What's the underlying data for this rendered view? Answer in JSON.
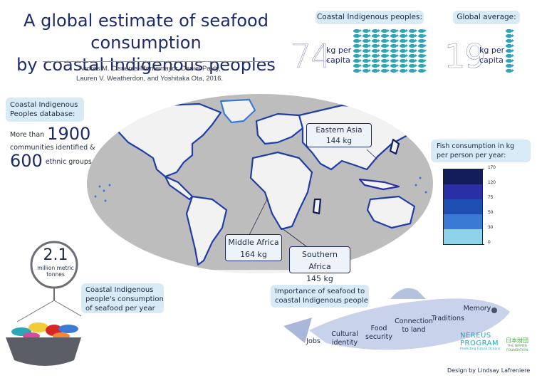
{
  "title_line1": "A global estimate of seafood consumption",
  "title_line2": "by coastal Indigenous peoples",
  "authors_line1": "Andrés M. Cisneros-Montemayor, Daniel Pauly,",
  "authors_line2": "Lauren V. Weatherdon, and Yoshitaka Ota, 2016.",
  "coastal": {
    "label": "Coastal Indigenous peoples:",
    "value": "74",
    "unit_line1": "kg per",
    "unit_line2": "capita"
  },
  "global": {
    "label": "Global average:",
    "value": "19",
    "unit_line1": "kg per",
    "unit_line2": "capita"
  },
  "database": {
    "label_line1": "Coastal Indigenous",
    "label_line2": "Peoples database:",
    "prefix": "More than",
    "communities_count": "1900",
    "communities_text": "communities identified &",
    "ethnic_count": "600",
    "ethnic_text": "ethnic groups."
  },
  "regions": [
    {
      "name": "Eastern Asia",
      "value": "144 kg"
    },
    {
      "name": "Middle Africa",
      "value": "164 kg"
    },
    {
      "name": "Southern Africa",
      "value": "145 kg"
    }
  ],
  "legend": {
    "title_line1": "Fish consumption in kg",
    "title_line2": "per person per year:",
    "ticks": [
      "170",
      "120",
      "75",
      "50",
      "30",
      "0"
    ],
    "colors": [
      "#131d5a",
      "#2a2fa8",
      "#1f4fb2",
      "#3a7ad4",
      "#8ed3ea"
    ]
  },
  "total": {
    "value": "2.1",
    "unit_line1": "million metric",
    "unit_line2": "tonnes",
    "label_line1": "Coastal Indigenous",
    "label_line2": "people's consumption",
    "label_line3": "of seafood per year"
  },
  "importance": {
    "label_line1": "Importance of seafood to",
    "label_line2": "coastal Indigenous people",
    "words": [
      {
        "l1": "Jobs",
        "l2": ""
      },
      {
        "l1": "Cultural",
        "l2": "identity"
      },
      {
        "l1": "Food",
        "l2": "security"
      },
      {
        "l1": "Connection",
        "l2": "to land"
      },
      {
        "l1": "Traditions",
        "l2": ""
      },
      {
        "l1": "Memory",
        "l2": ""
      }
    ]
  },
  "nereus": {
    "line1": "NEREUS",
    "line2": "PROGRAM",
    "line3": "Predicting Future Oceans"
  },
  "nippon": {
    "kanji": "日本財団",
    "line1": "THE NIPPON",
    "line2": "FOUNDATION"
  },
  "credit": "Design by Lindsay Lafreniere"
}
